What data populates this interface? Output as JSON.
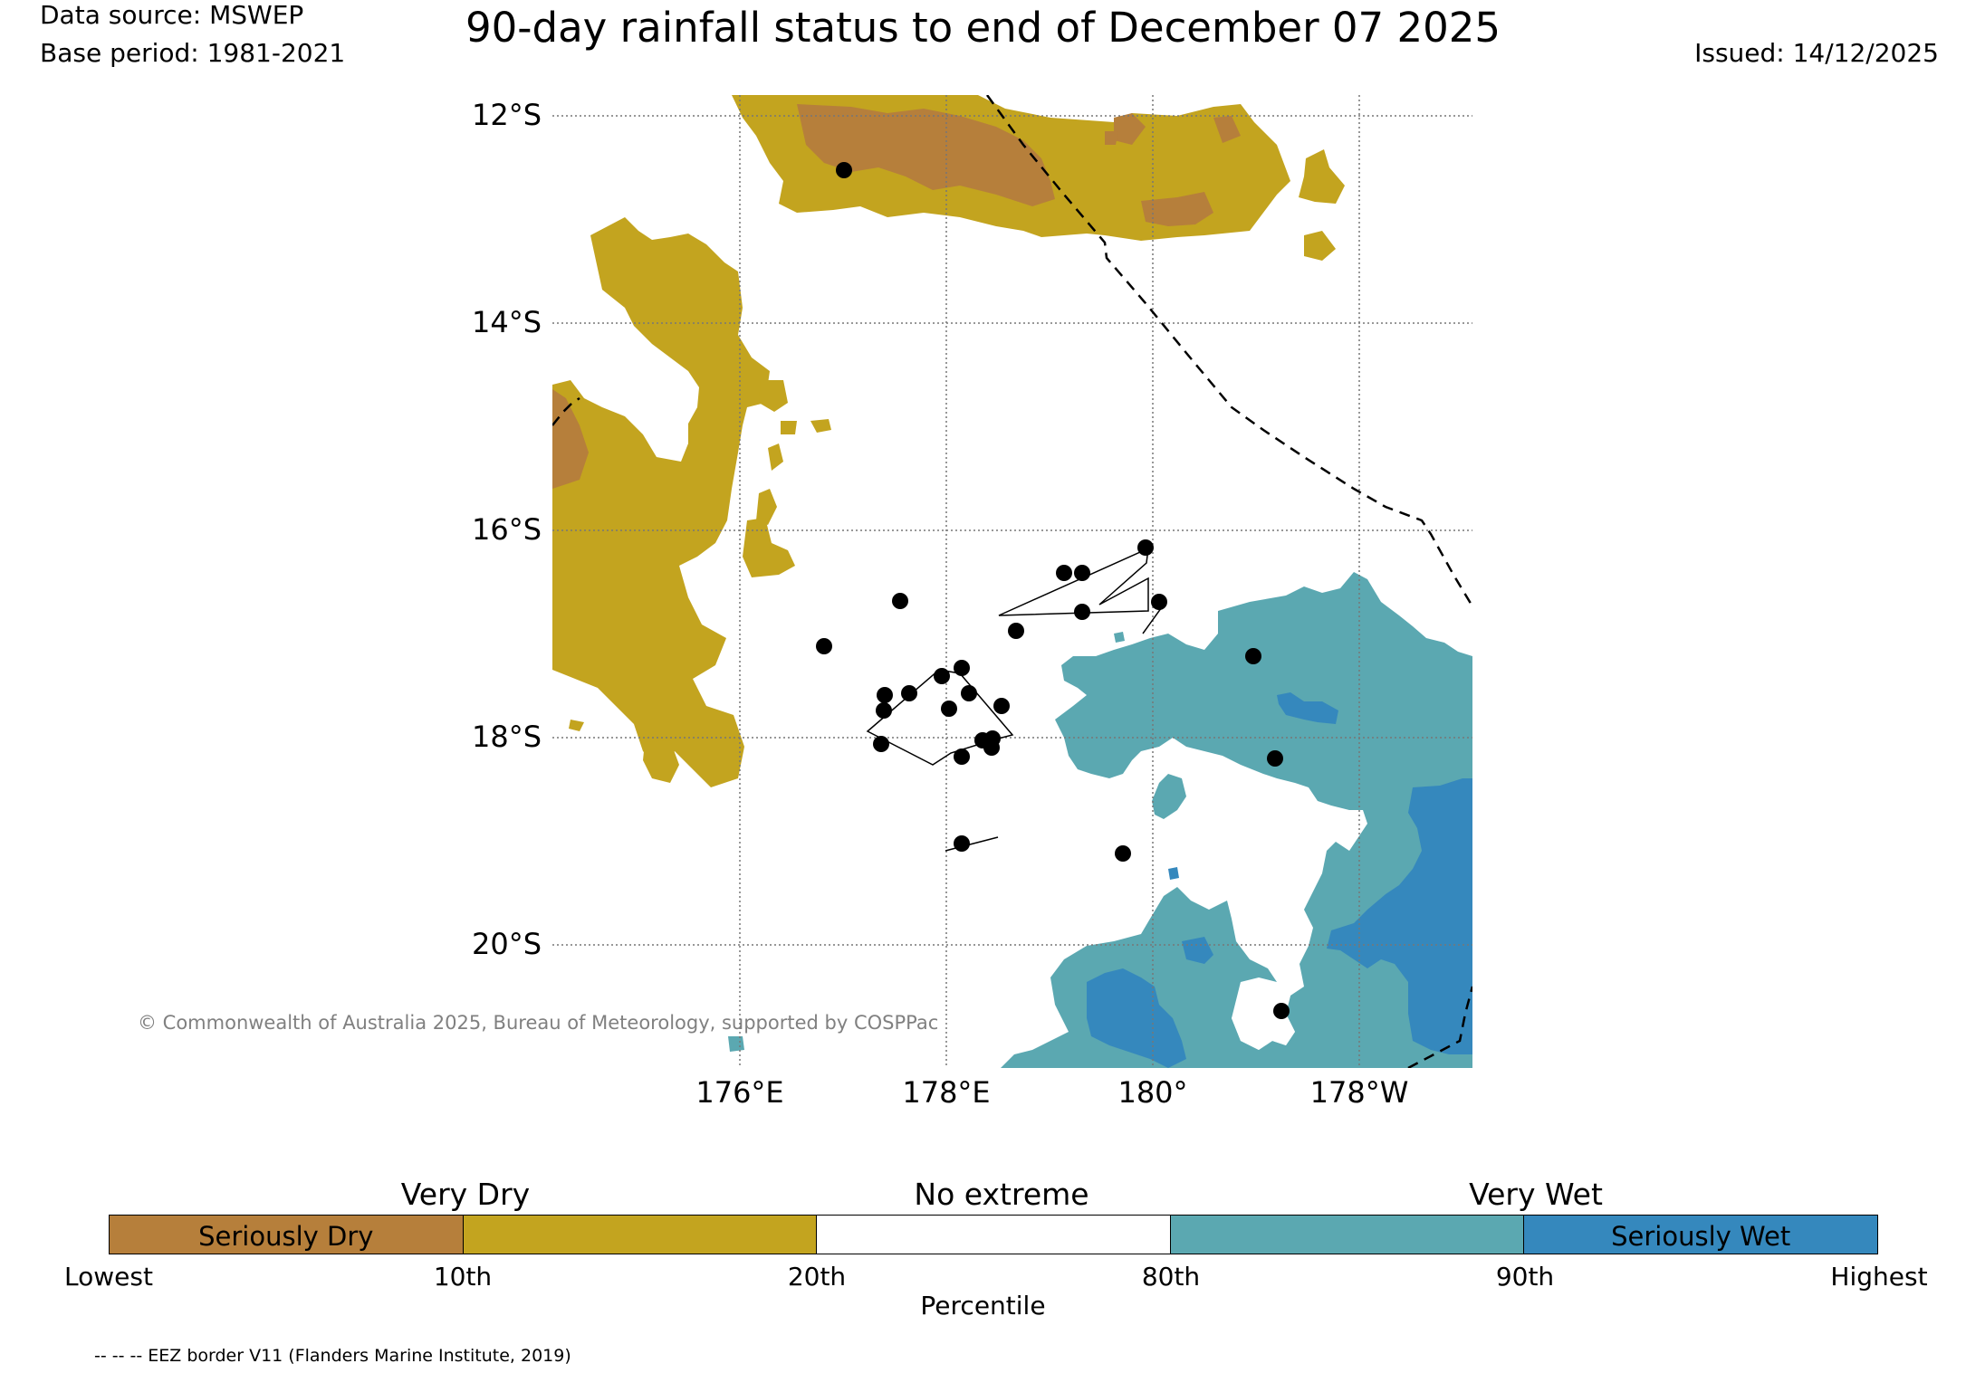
{
  "header": {
    "data_source": "Data source: MSWEP",
    "base_period": "Base period: 1981-2021",
    "title": "90-day rainfall status to end of December 07 2025",
    "issued": "Issued: 14/12/2025"
  },
  "map": {
    "lat_labels": [
      "12°S",
      "14°S",
      "16°S",
      "18°S",
      "20°S"
    ],
    "lon_labels": [
      "176°E",
      "178°E",
      "180°",
      "178°W"
    ],
    "copyright": "© Commonwealth of Australia 2025, Bureau of Meteorology, supported by COSPPac",
    "colors": {
      "seriously_dry": "#b67f3b",
      "very_dry": "#c3a41f",
      "no_extreme": "#ffffff",
      "very_wet": "#5ba8b1",
      "seriously_wet": "#3588bd"
    }
  },
  "legend": {
    "headers": {
      "very_dry": "Very Dry",
      "no_extreme": "No extreme",
      "very_wet": "Very Wet"
    },
    "segments": [
      {
        "label": "Seriously Dry",
        "color": "#b67f3b"
      },
      {
        "label": "",
        "color": "#c3a41f"
      },
      {
        "label": "",
        "color": "#ffffff"
      },
      {
        "label": "",
        "color": "#5ba8b1"
      },
      {
        "label": "Seriously Wet",
        "color": "#3588bd"
      }
    ],
    "ticks": [
      "Lowest",
      "10th",
      "20th",
      "80th",
      "90th",
      "Highest"
    ],
    "axis_label": "Percentile"
  },
  "footnote": "-- -- -- EEZ border V11 (Flanders Marine Institute, 2019)"
}
